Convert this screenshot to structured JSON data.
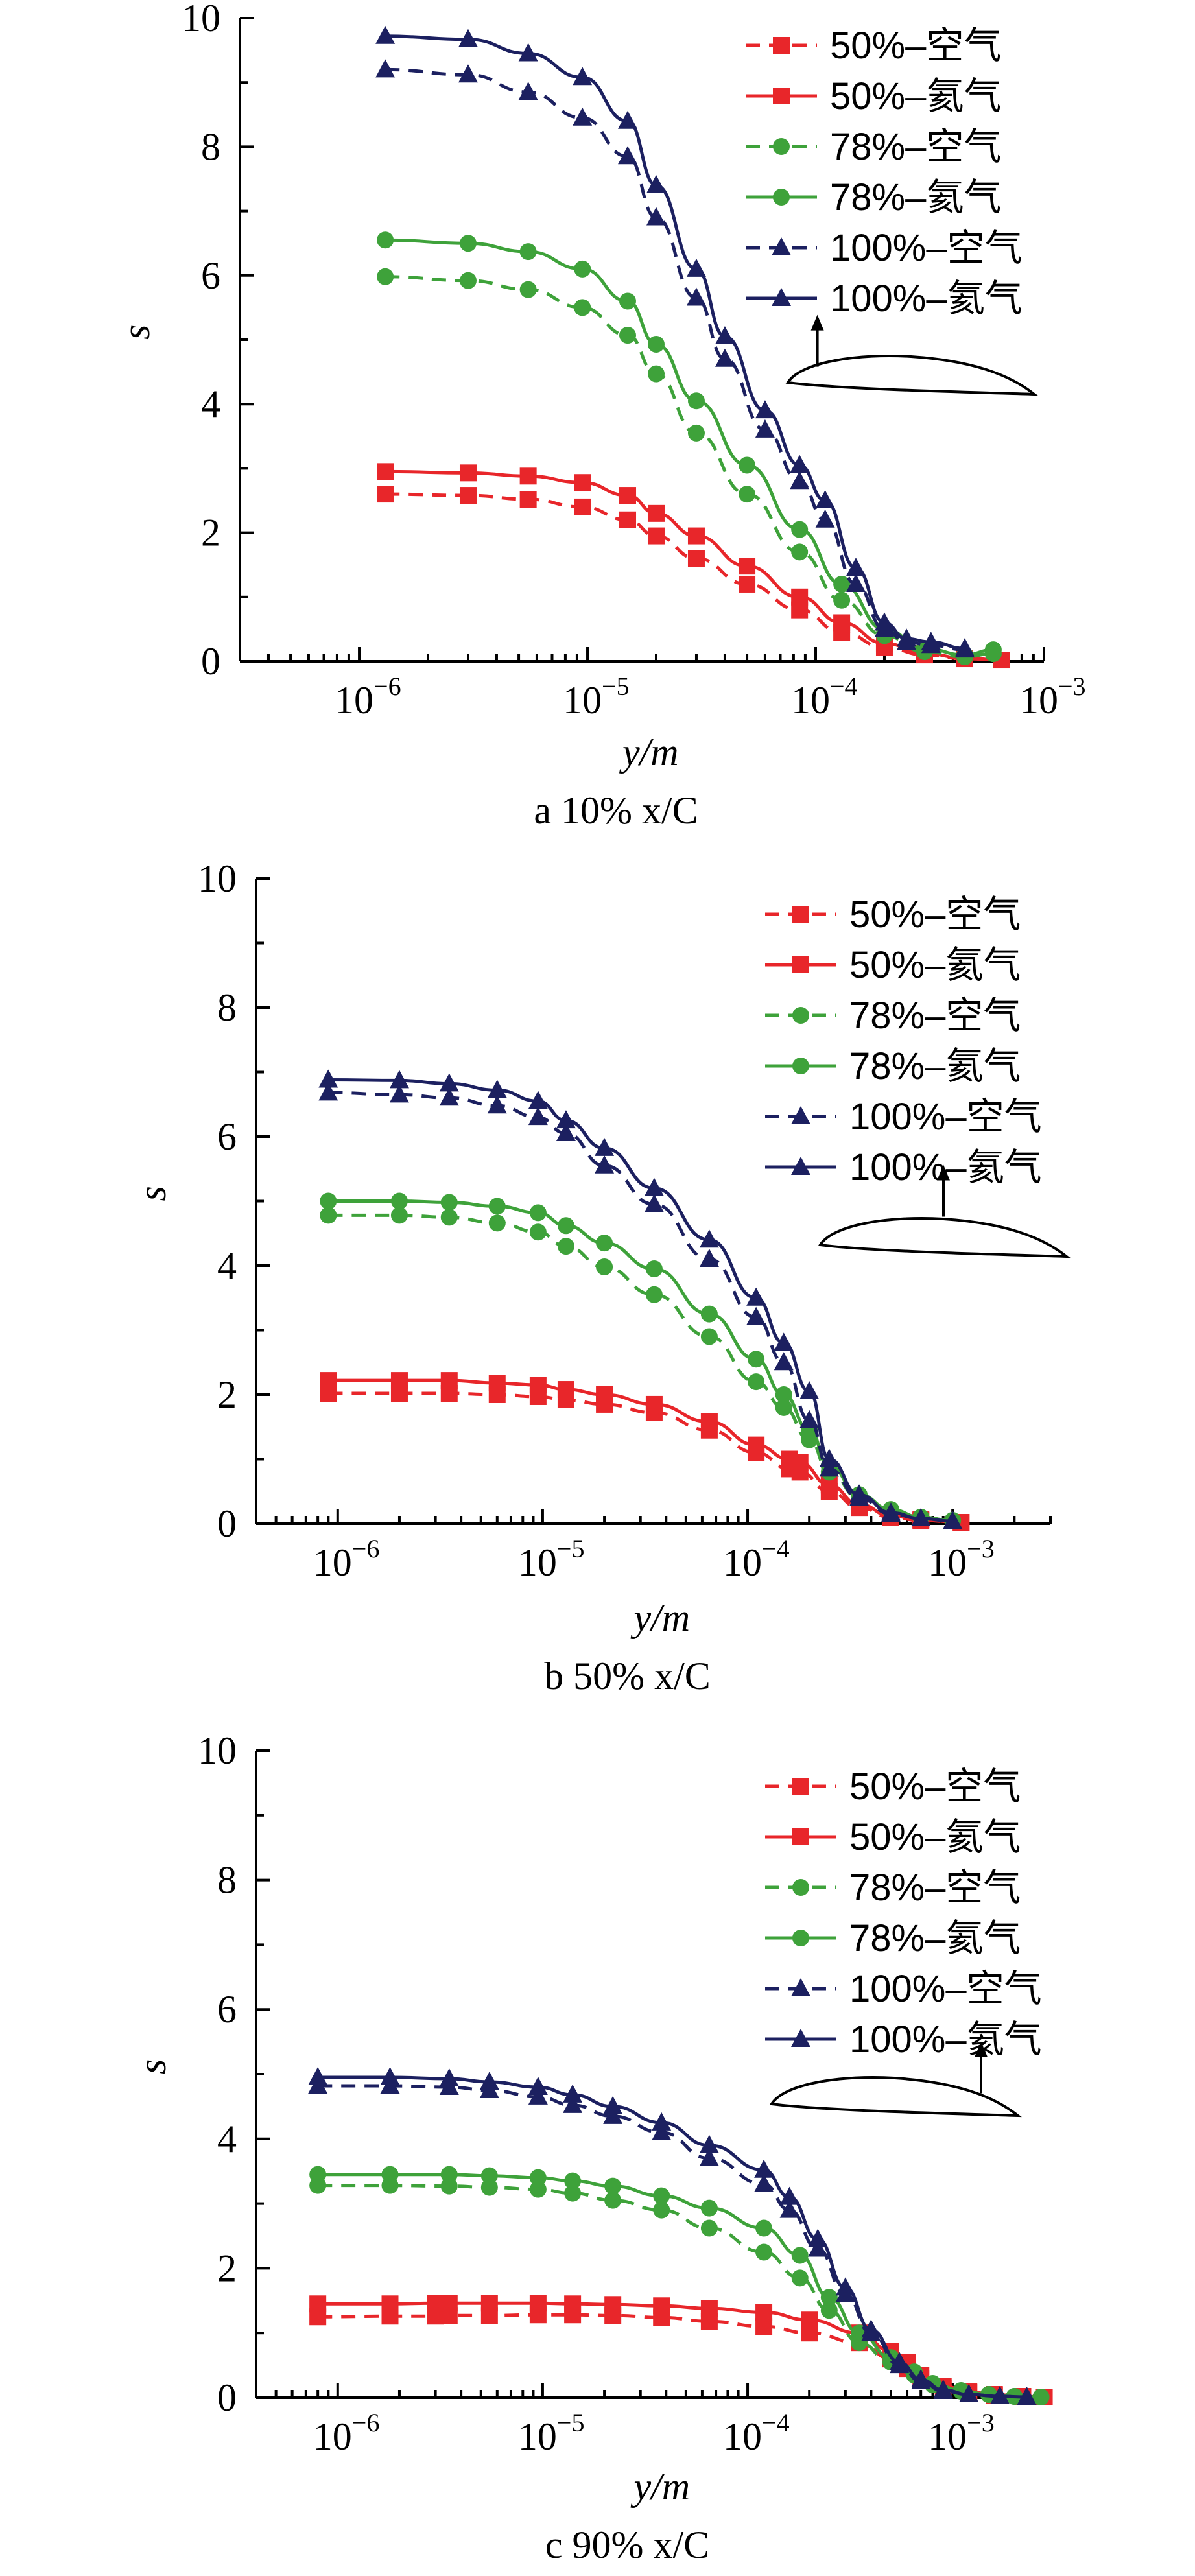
{
  "chart_data": [
    {
      "type": "line",
      "caption": "a  10% x/C",
      "xlabel": "y/m",
      "ylabel": "s",
      "xscale": "log",
      "xlim": [
        3e-07,
        0.001
      ],
      "ylim": [
        0,
        10
      ],
      "yticks": [
        "0",
        "2",
        "4",
        "6",
        "8",
        "10"
      ],
      "xticks": [
        {
          "exp": -6,
          "label": "10",
          "sup": "−6"
        },
        {
          "exp": -5,
          "label": "10",
          "sup": "−5"
        },
        {
          "exp": -4,
          "label": "10",
          "sup": "−4"
        },
        {
          "exp": -3,
          "label": "10",
          "sup": "−3"
        }
      ],
      "grid": false,
      "legend_position": "top-right",
      "inset": "airfoil with arrow near leading edge",
      "series": [
        {
          "name": "50%–空气",
          "color": "#e8262a",
          "dash": true,
          "marker": "square",
          "x": [
            1.3e-06,
            3e-06,
            5.5e-06,
            9.5e-06,
            1.5e-05,
            2e-05,
            3e-05,
            5e-05,
            8.5e-05,
            0.00013,
            0.0002,
            0.0003,
            0.00045,
            0.00065
          ],
          "y": [
            2.6,
            2.58,
            2.52,
            2.4,
            2.2,
            1.95,
            1.6,
            1.2,
            0.8,
            0.45,
            0.22,
            0.1,
            0.04,
            0.02
          ]
        },
        {
          "name": "50%–氦气",
          "color": "#e8262a",
          "dash": false,
          "marker": "square",
          "x": [
            1.3e-06,
            3e-06,
            5.5e-06,
            9.5e-06,
            1.5e-05,
            2e-05,
            3e-05,
            5e-05,
            8.5e-05,
            0.00013,
            0.0002,
            0.0003,
            0.00045,
            0.00065
          ],
          "y": [
            2.95,
            2.93,
            2.88,
            2.78,
            2.58,
            2.3,
            1.95,
            1.48,
            1.0,
            0.6,
            0.28,
            0.12,
            0.05,
            0.02
          ]
        },
        {
          "name": "78%–空气",
          "color": "#3ea23a",
          "dash": true,
          "marker": "circle",
          "x": [
            1.3e-06,
            3e-06,
            5.5e-06,
            9.5e-06,
            1.5e-05,
            2e-05,
            3e-05,
            5e-05,
            8.5e-05,
            0.00013,
            0.0002,
            0.0003,
            0.00045,
            0.0006
          ],
          "y": [
            5.98,
            5.92,
            5.78,
            5.5,
            5.07,
            4.47,
            3.55,
            2.6,
            1.7,
            0.95,
            0.4,
            0.15,
            0.07,
            0.12
          ]
        },
        {
          "name": "78%–氦气",
          "color": "#3ea23a",
          "dash": false,
          "marker": "circle",
          "x": [
            1.3e-06,
            3e-06,
            5.5e-06,
            9.5e-06,
            1.5e-05,
            2e-05,
            3e-05,
            5e-05,
            8.5e-05,
            0.00013,
            0.0002,
            0.0003,
            0.00045,
            0.0006
          ],
          "y": [
            6.55,
            6.5,
            6.37,
            6.1,
            5.6,
            4.93,
            4.05,
            3.05,
            2.05,
            1.2,
            0.5,
            0.2,
            0.1,
            0.18
          ]
        },
        {
          "name": "100%–空气",
          "color": "#1c2060",
          "dash": true,
          "marker": "triangle",
          "x": [
            1.3e-06,
            3e-06,
            5.5e-06,
            9.5e-06,
            1.5e-05,
            2e-05,
            3e-05,
            4e-05,
            6e-05,
            8.5e-05,
            0.00011,
            0.00015,
            0.0002,
            0.00025,
            0.00032,
            0.00045
          ],
          "y": [
            9.2,
            9.12,
            8.85,
            8.45,
            7.85,
            6.9,
            5.65,
            4.7,
            3.6,
            2.8,
            2.2,
            1.2,
            0.5,
            0.3,
            0.25,
            0.18
          ]
        },
        {
          "name": "100%–氦气",
          "color": "#1c2060",
          "dash": false,
          "marker": "triangle",
          "x": [
            1.3e-06,
            3e-06,
            5.5e-06,
            9.5e-06,
            1.5e-05,
            2e-05,
            3e-05,
            4e-05,
            6e-05,
            8.5e-05,
            0.00011,
            0.00015,
            0.0002,
            0.00025,
            0.00032,
            0.00045
          ],
          "y": [
            9.72,
            9.67,
            9.45,
            9.08,
            8.4,
            7.4,
            6.1,
            5.05,
            3.9,
            3.05,
            2.5,
            1.45,
            0.6,
            0.35,
            0.3,
            0.2
          ]
        }
      ]
    },
    {
      "type": "line",
      "caption": "b  50% x/C",
      "xlabel": "y/m",
      "ylabel": "s",
      "xscale": "log",
      "xlim": [
        4e-07,
        0.003
      ],
      "ylim": [
        0,
        10
      ],
      "yticks": [
        "0",
        "2",
        "4",
        "6",
        "8",
        "10"
      ],
      "xticks": [
        {
          "exp": -6,
          "label": "10",
          "sup": "−6"
        },
        {
          "exp": -5,
          "label": "10",
          "sup": "−5"
        },
        {
          "exp": -4,
          "label": "10",
          "sup": "−4"
        },
        {
          "exp": -3,
          "label": "10",
          "sup": "−3"
        }
      ],
      "grid": false,
      "legend_position": "top-right",
      "inset": "airfoil with arrow at mid-chord",
      "series": [
        {
          "name": "50%–空气",
          "color": "#e8262a",
          "dash": true,
          "marker": "square",
          "x": [
            9e-07,
            2e-06,
            3.5e-06,
            6e-06,
            9.5e-06,
            1.3e-05,
            2e-05,
            3.5e-05,
            6.5e-05,
            0.00011,
            0.00016,
            0.00018,
            0.00025,
            0.00035,
            0.0005,
            0.0007,
            0.0011
          ],
          "y": [
            2.02,
            2.02,
            2.02,
            2.0,
            1.97,
            1.92,
            1.85,
            1.72,
            1.45,
            1.1,
            0.85,
            0.8,
            0.5,
            0.25,
            0.1,
            0.05,
            0.02
          ]
        },
        {
          "name": "50%–氦气",
          "color": "#e8262a",
          "dash": false,
          "marker": "square",
          "x": [
            9e-07,
            2e-06,
            3.5e-06,
            6e-06,
            9.5e-06,
            1.3e-05,
            2e-05,
            3.5e-05,
            6.5e-05,
            0.00011,
            0.00016,
            0.00018,
            0.00025,
            0.00035,
            0.0005,
            0.0007,
            0.0011
          ],
          "y": [
            2.22,
            2.22,
            2.22,
            2.18,
            2.15,
            2.08,
            2.0,
            1.85,
            1.58,
            1.22,
            1.0,
            0.95,
            0.6,
            0.3,
            0.12,
            0.06,
            0.02
          ]
        },
        {
          "name": "78%–空气",
          "color": "#3ea23a",
          "dash": true,
          "marker": "circle",
          "x": [
            9e-07,
            2e-06,
            3.5e-06,
            6e-06,
            9.5e-06,
            1.3e-05,
            2e-05,
            3.5e-05,
            6.5e-05,
            0.00011,
            0.00015,
            0.0002,
            0.00025,
            0.00035,
            0.0005,
            0.0007,
            0.001
          ],
          "y": [
            4.78,
            4.78,
            4.75,
            4.66,
            4.52,
            4.3,
            3.98,
            3.55,
            2.9,
            2.2,
            1.8,
            1.3,
            0.8,
            0.4,
            0.2,
            0.1,
            0.05
          ]
        },
        {
          "name": "78%–氦气",
          "color": "#3ea23a",
          "dash": false,
          "marker": "circle",
          "x": [
            9e-07,
            2e-06,
            3.5e-06,
            6e-06,
            9.5e-06,
            1.3e-05,
            2e-05,
            3.5e-05,
            6.5e-05,
            0.00011,
            0.00015,
            0.0002,
            0.00025,
            0.00035,
            0.0005,
            0.0007,
            0.001
          ],
          "y": [
            5.0,
            5.0,
            4.98,
            4.92,
            4.82,
            4.62,
            4.35,
            3.95,
            3.25,
            2.55,
            2.0,
            1.45,
            0.9,
            0.45,
            0.22,
            0.1,
            0.05
          ]
        },
        {
          "name": "100%–空气",
          "color": "#1c2060",
          "dash": true,
          "marker": "triangle",
          "x": [
            9e-07,
            2e-06,
            3.5e-06,
            6e-06,
            9.5e-06,
            1.3e-05,
            2e-05,
            3.5e-05,
            6.5e-05,
            0.00011,
            0.00015,
            0.0002,
            0.00025,
            0.00035,
            0.0005,
            0.0007,
            0.001
          ],
          "y": [
            6.68,
            6.65,
            6.6,
            6.48,
            6.3,
            6.05,
            5.55,
            4.95,
            4.1,
            3.2,
            2.5,
            1.6,
            0.85,
            0.4,
            0.15,
            0.08,
            0.04
          ]
        },
        {
          "name": "100%–氦气",
          "color": "#1c2060",
          "dash": false,
          "marker": "triangle",
          "x": [
            9e-07,
            2e-06,
            3.5e-06,
            6e-06,
            9.5e-06,
            1.3e-05,
            2e-05,
            3.5e-05,
            6.5e-05,
            0.00011,
            0.00015,
            0.0002,
            0.00025,
            0.00035,
            0.0005,
            0.0007,
            0.001
          ],
          "y": [
            6.88,
            6.87,
            6.82,
            6.72,
            6.55,
            6.25,
            5.82,
            5.2,
            4.4,
            3.5,
            2.8,
            2.05,
            1.0,
            0.45,
            0.17,
            0.08,
            0.04
          ]
        }
      ]
    },
    {
      "type": "line",
      "caption": "c  90% x/C",
      "xlabel": "y/m",
      "ylabel": "s",
      "xscale": "log",
      "xlim": [
        4e-07,
        0.003
      ],
      "ylim": [
        0,
        10
      ],
      "yticks": [
        "0",
        "2",
        "4",
        "6",
        "8",
        "10"
      ],
      "xticks": [
        {
          "exp": -6,
          "label": "10",
          "sup": "−6"
        },
        {
          "exp": -5,
          "label": "10",
          "sup": "−5"
        },
        {
          "exp": -4,
          "label": "10",
          "sup": "−4"
        },
        {
          "exp": -3,
          "label": "10",
          "sup": "−3"
        }
      ],
      "grid": false,
      "legend_position": "top-right",
      "inset": "airfoil with arrow near trailing edge",
      "series": [
        {
          "name": "50%–空气",
          "color": "#e8262a",
          "dash": true,
          "marker": "square",
          "x": [
            8e-07,
            1.8e-06,
            3e-06,
            3.5e-06,
            5.5e-06,
            9.5e-06,
            1.4e-05,
            2.2e-05,
            3.8e-05,
            6.5e-05,
            0.00012,
            0.0002,
            0.00035,
            0.0005,
            0.0006,
            0.0007,
            0.0009,
            0.0012,
            0.0016,
            0.0022,
            0.0028
          ],
          "y": [
            1.25,
            1.26,
            1.26,
            1.27,
            1.27,
            1.28,
            1.28,
            1.27,
            1.24,
            1.18,
            1.1,
            1.0,
            0.85,
            0.6,
            0.45,
            0.3,
            0.15,
            0.08,
            0.04,
            0.02,
            0.01
          ]
        },
        {
          "name": "50%–氦气",
          "color": "#e8262a",
          "dash": false,
          "marker": "square",
          "x": [
            8e-07,
            1.8e-06,
            3e-06,
            3.5e-06,
            5.5e-06,
            9.5e-06,
            1.4e-05,
            2.2e-05,
            3.8e-05,
            6.5e-05,
            0.00012,
            0.0002,
            0.00035,
            0.0005,
            0.0006,
            0.0007,
            0.0009,
            0.0012,
            0.0016,
            0.0022,
            0.0028
          ],
          "y": [
            1.45,
            1.45,
            1.46,
            1.46,
            1.46,
            1.46,
            1.45,
            1.44,
            1.42,
            1.38,
            1.32,
            1.2,
            1.0,
            0.72,
            0.55,
            0.35,
            0.18,
            0.09,
            0.05,
            0.02,
            0.01
          ]
        },
        {
          "name": "78%–空气",
          "color": "#3ea23a",
          "dash": true,
          "marker": "circle",
          "x": [
            8e-07,
            1.8e-06,
            3.5e-06,
            5.5e-06,
            9.5e-06,
            1.4e-05,
            2.2e-05,
            3.8e-05,
            6.5e-05,
            0.00012,
            0.00018,
            0.00025,
            0.00035,
            0.0005,
            0.00065,
            0.0008,
            0.0011,
            0.0015,
            0.002,
            0.0027
          ],
          "y": [
            3.28,
            3.28,
            3.27,
            3.25,
            3.22,
            3.16,
            3.05,
            2.9,
            2.62,
            2.25,
            1.85,
            1.35,
            0.85,
            0.55,
            0.35,
            0.2,
            0.1,
            0.05,
            0.02,
            0.01
          ]
        },
        {
          "name": "78%–氦气",
          "color": "#3ea23a",
          "dash": false,
          "marker": "circle",
          "x": [
            8e-07,
            1.8e-06,
            3.5e-06,
            5.5e-06,
            9.5e-06,
            1.4e-05,
            2.2e-05,
            3.8e-05,
            6.5e-05,
            0.00012,
            0.00018,
            0.00025,
            0.00035,
            0.0005,
            0.00065,
            0.0008,
            0.0011,
            0.0015,
            0.002,
            0.0027
          ],
          "y": [
            3.45,
            3.45,
            3.45,
            3.43,
            3.4,
            3.35,
            3.27,
            3.12,
            2.93,
            2.62,
            2.2,
            1.55,
            1.0,
            0.62,
            0.4,
            0.22,
            0.11,
            0.05,
            0.02,
            0.01
          ]
        },
        {
          "name": "100%–空气",
          "color": "#1c2060",
          "dash": true,
          "marker": "triangle",
          "x": [
            8e-07,
            1.8e-06,
            3.5e-06,
            5.5e-06,
            9.5e-06,
            1.4e-05,
            2.2e-05,
            3.8e-05,
            6.5e-05,
            0.00012,
            0.00016,
            0.00022,
            0.0003,
            0.0004,
            0.00055,
            0.0007,
            0.0009,
            0.0012,
            0.0017,
            0.0023
          ],
          "y": [
            4.82,
            4.82,
            4.8,
            4.75,
            4.65,
            4.52,
            4.35,
            4.1,
            3.7,
            3.3,
            2.9,
            2.3,
            1.6,
            1.0,
            0.5,
            0.25,
            0.1,
            0.05,
            0.02,
            0.01
          ]
        },
        {
          "name": "100%–氦气",
          "color": "#1c2060",
          "dash": false,
          "marker": "triangle",
          "x": [
            8e-07,
            1.8e-06,
            3.5e-06,
            5.5e-06,
            9.5e-06,
            1.4e-05,
            2.2e-05,
            3.8e-05,
            6.5e-05,
            0.00012,
            0.00016,
            0.00022,
            0.0003,
            0.0004,
            0.00055,
            0.0007,
            0.0009,
            0.0012,
            0.0017,
            0.0023
          ],
          "y": [
            4.95,
            4.95,
            4.93,
            4.88,
            4.8,
            4.68,
            4.5,
            4.25,
            3.9,
            3.52,
            3.1,
            2.45,
            1.7,
            1.05,
            0.55,
            0.28,
            0.12,
            0.05,
            0.02,
            0.01
          ]
        }
      ]
    }
  ]
}
